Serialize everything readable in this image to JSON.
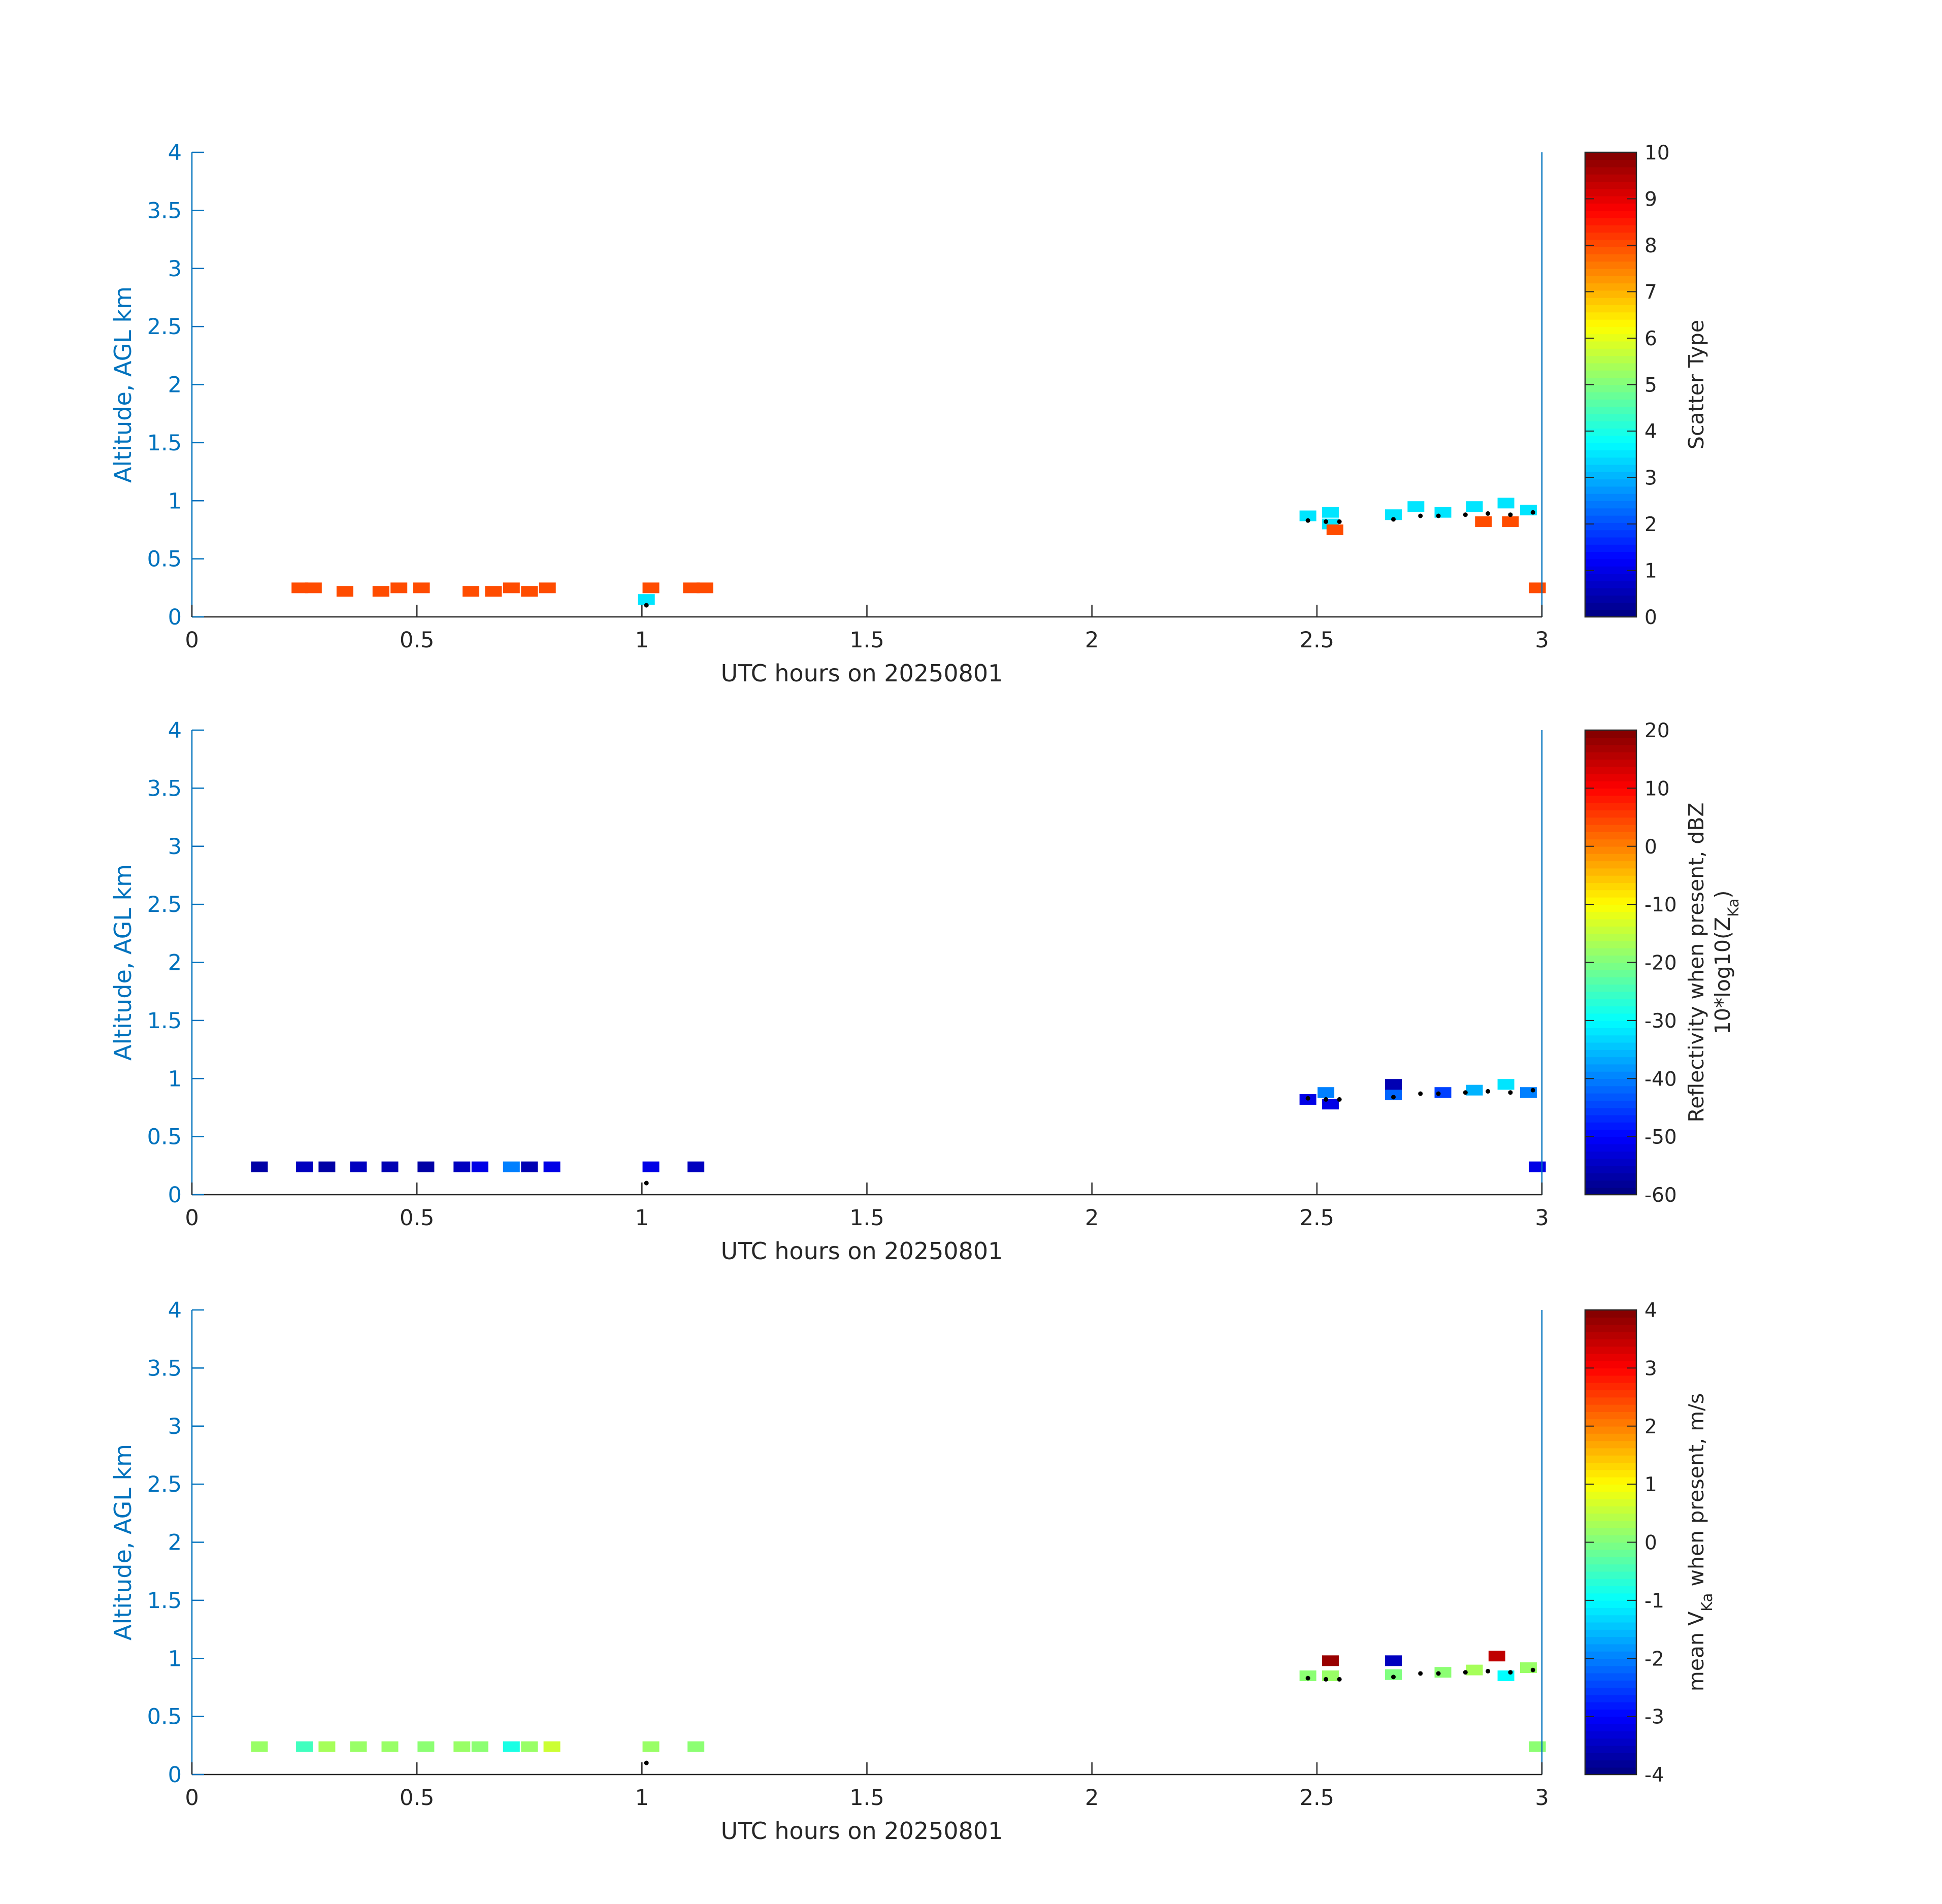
{
  "chart_data": [
    {
      "type": "heatmap",
      "title": "",
      "xlabel": "UTC hours on 20250801",
      "ylabel": "Altitude, AGL km",
      "xlim": [
        0,
        3
      ],
      "ylim": [
        0,
        4
      ],
      "xticks": [
        "0",
        "0.5",
        "1",
        "1.5",
        "2",
        "2.5",
        "3"
      ],
      "yticks": [
        "0",
        "0.5",
        "1",
        "1.5",
        "2",
        "2.5",
        "3",
        "3.5",
        "4"
      ],
      "colorbar": {
        "label": "Scatter Type",
        "range": [
          0,
          10
        ],
        "ticks": [
          "0",
          "1",
          "2",
          "3",
          "4",
          "5",
          "6",
          "7",
          "8",
          "9",
          "10"
        ]
      },
      "cells": [
        [
          0.24,
          0.25,
          8
        ],
        [
          0.27,
          0.25,
          8
        ],
        [
          0.34,
          0.22,
          8
        ],
        [
          0.42,
          0.22,
          8
        ],
        [
          0.46,
          0.25,
          8
        ],
        [
          0.51,
          0.25,
          8
        ],
        [
          0.62,
          0.22,
          8
        ],
        [
          0.67,
          0.22,
          8
        ],
        [
          0.71,
          0.25,
          8
        ],
        [
          0.75,
          0.22,
          8
        ],
        [
          0.79,
          0.25,
          8
        ],
        [
          1.01,
          0.15,
          3.5
        ],
        [
          1.02,
          0.25,
          8
        ],
        [
          1.11,
          0.25,
          8
        ],
        [
          1.14,
          0.25,
          8
        ],
        [
          2.48,
          0.87,
          3.5
        ],
        [
          2.53,
          0.9,
          3.5
        ],
        [
          2.53,
          0.8,
          3.5
        ],
        [
          2.54,
          0.75,
          8
        ],
        [
          2.67,
          0.88,
          3.5
        ],
        [
          2.72,
          0.95,
          3.5
        ],
        [
          2.78,
          0.9,
          3.5
        ],
        [
          2.85,
          0.95,
          3.5
        ],
        [
          2.92,
          0.98,
          3.5
        ],
        [
          2.97,
          0.92,
          3.5
        ],
        [
          2.87,
          0.82,
          8
        ],
        [
          2.93,
          0.82,
          8
        ],
        [
          2.99,
          0.25,
          8
        ]
      ],
      "height_markers": [
        [
          1.01,
          0.1
        ],
        [
          2.48,
          0.83
        ],
        [
          2.52,
          0.82
        ],
        [
          2.55,
          0.82
        ],
        [
          2.67,
          0.84
        ],
        [
          2.73,
          0.87
        ],
        [
          2.77,
          0.87
        ],
        [
          2.83,
          0.88
        ],
        [
          2.88,
          0.89
        ],
        [
          2.93,
          0.88
        ],
        [
          2.98,
          0.9
        ]
      ]
    },
    {
      "type": "heatmap",
      "title": "",
      "xlabel": "UTC hours on 20250801",
      "ylabel": "Altitude, AGL km",
      "xlim": [
        0,
        3
      ],
      "ylim": [
        0,
        4
      ],
      "xticks": [
        "0",
        "0.5",
        "1",
        "1.5",
        "2",
        "2.5",
        "3"
      ],
      "yticks": [
        "0",
        "0.5",
        "1",
        "1.5",
        "2",
        "2.5",
        "3",
        "3.5",
        "4"
      ],
      "colorbar": {
        "label": "Reflectivity when present, dBZ",
        "label2": "10*log10(Z",
        "label2_sub": "Ka",
        "label2_end": ")",
        "range": [
          -60,
          20
        ],
        "ticks": [
          "-60",
          "-50",
          "-40",
          "-30",
          "-20",
          "-10",
          "0",
          "10",
          "20"
        ]
      },
      "cells": [
        [
          0.15,
          0.24,
          -57
        ],
        [
          0.25,
          0.24,
          -55
        ],
        [
          0.3,
          0.24,
          -57
        ],
        [
          0.37,
          0.24,
          -55
        ],
        [
          0.44,
          0.24,
          -56
        ],
        [
          0.52,
          0.24,
          -57
        ],
        [
          0.6,
          0.24,
          -55
        ],
        [
          0.64,
          0.24,
          -52
        ],
        [
          0.71,
          0.24,
          -40
        ],
        [
          0.75,
          0.24,
          -56
        ],
        [
          0.8,
          0.24,
          -52
        ],
        [
          1.02,
          0.24,
          -52
        ],
        [
          1.12,
          0.24,
          -55
        ],
        [
          2.48,
          0.82,
          -52
        ],
        [
          2.52,
          0.88,
          -40
        ],
        [
          2.53,
          0.78,
          -52
        ],
        [
          2.67,
          0.86,
          -42
        ],
        [
          2.67,
          0.95,
          -56
        ],
        [
          2.78,
          0.88,
          -45
        ],
        [
          2.85,
          0.9,
          -36
        ],
        [
          2.92,
          0.95,
          -32
        ],
        [
          2.97,
          0.88,
          -40
        ],
        [
          2.99,
          0.24,
          -52
        ]
      ],
      "height_markers": [
        [
          1.01,
          0.1
        ],
        [
          2.48,
          0.83
        ],
        [
          2.52,
          0.82
        ],
        [
          2.55,
          0.82
        ],
        [
          2.67,
          0.84
        ],
        [
          2.73,
          0.87
        ],
        [
          2.77,
          0.87
        ],
        [
          2.83,
          0.88
        ],
        [
          2.88,
          0.89
        ],
        [
          2.93,
          0.88
        ],
        [
          2.98,
          0.9
        ]
      ]
    },
    {
      "type": "heatmap",
      "title": "",
      "xlabel": "UTC hours on 20250801",
      "ylabel": "Altitude, AGL km",
      "xlim": [
        0,
        3
      ],
      "ylim": [
        0,
        4
      ],
      "xticks": [
        "0",
        "0.5",
        "1",
        "1.5",
        "2",
        "2.5",
        "3"
      ],
      "yticks": [
        "0",
        "0.5",
        "1",
        "1.5",
        "2",
        "2.5",
        "3",
        "3.5",
        "4"
      ],
      "colorbar": {
        "label_pre": "mean V",
        "label_sub": "Ka",
        "label_post": " when present, m/s",
        "range": [
          -4,
          4
        ],
        "ticks": [
          "-4",
          "-3",
          "-2",
          "-1",
          "0",
          "1",
          "2",
          "3",
          "4"
        ]
      },
      "cells": [
        [
          0.15,
          0.24,
          0.2
        ],
        [
          0.25,
          0.24,
          -0.5
        ],
        [
          0.3,
          0.24,
          0.3
        ],
        [
          0.37,
          0.24,
          0.2
        ],
        [
          0.44,
          0.24,
          0.2
        ],
        [
          0.52,
          0.24,
          0.1
        ],
        [
          0.6,
          0.24,
          0.2
        ],
        [
          0.64,
          0.24,
          0.1
        ],
        [
          0.71,
          0.24,
          -0.8
        ],
        [
          0.75,
          0.24,
          0.2
        ],
        [
          0.8,
          0.24,
          0.6
        ],
        [
          1.02,
          0.24,
          0.2
        ],
        [
          1.12,
          0.24,
          0.1
        ],
        [
          2.48,
          0.85,
          0.1
        ],
        [
          2.53,
          0.85,
          0.2
        ],
        [
          2.53,
          0.98,
          3.8
        ],
        [
          2.67,
          0.86,
          0.0
        ],
        [
          2.67,
          0.98,
          -3.5
        ],
        [
          2.78,
          0.88,
          0.1
        ],
        [
          2.85,
          0.9,
          0.3
        ],
        [
          2.9,
          1.02,
          3.5
        ],
        [
          2.92,
          0.85,
          -1.0
        ],
        [
          2.97,
          0.92,
          0.2
        ],
        [
          2.99,
          0.24,
          0.1
        ]
      ],
      "height_markers": [
        [
          1.01,
          0.1
        ],
        [
          2.48,
          0.83
        ],
        [
          2.52,
          0.82
        ],
        [
          2.55,
          0.82
        ],
        [
          2.67,
          0.84
        ],
        [
          2.73,
          0.87
        ],
        [
          2.77,
          0.87
        ],
        [
          2.83,
          0.88
        ],
        [
          2.88,
          0.89
        ],
        [
          2.93,
          0.88
        ],
        [
          2.98,
          0.9
        ]
      ]
    }
  ],
  "colors": {
    "axis_blue": "#0072BD",
    "axis_gray": "#262626",
    "marker": "#000000"
  },
  "colormap": "jet"
}
